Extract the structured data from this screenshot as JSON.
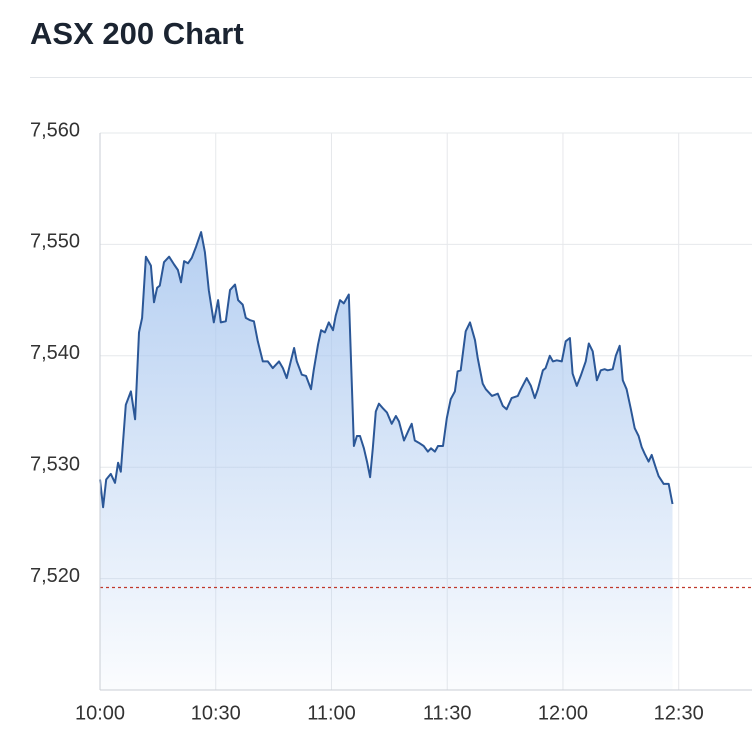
{
  "chart_data": {
    "type": "area",
    "title": "ASX 200 Chart",
    "x": [
      600.0,
      600.8,
      601.6,
      602.8,
      603.9,
      604.7,
      605.4,
      606.7,
      608.0,
      609.1,
      610.1,
      610.9,
      611.9,
      613.2,
      614.0,
      614.8,
      615.5,
      616.6,
      617.9,
      619.2,
      620.2,
      621.0,
      621.8,
      622.8,
      623.8,
      624.9,
      626.2,
      627.2,
      628.2,
      629.5,
      630.6,
      631.3,
      632.6,
      633.7,
      635.0,
      635.8,
      637.0,
      637.8,
      638.9,
      639.9,
      640.9,
      642.2,
      643.5,
      644.8,
      646.4,
      647.4,
      648.4,
      649.5,
      650.3,
      651.0,
      652.3,
      653.4,
      654.7,
      655.4,
      656.5,
      657.3,
      658.3,
      659.3,
      660.4,
      661.1,
      662.2,
      663.2,
      664.5,
      665.8,
      666.6,
      667.4,
      668.4,
      669.2,
      670.0,
      670.7,
      671.5,
      672.3,
      673.3,
      674.4,
      675.6,
      676.7,
      677.5,
      678.8,
      680.1,
      680.8,
      681.6,
      682.6,
      683.9,
      685.0,
      685.8,
      686.8,
      687.6,
      688.9,
      689.9,
      690.9,
      692.0,
      692.7,
      693.5,
      694.8,
      695.9,
      697.2,
      697.9,
      699.2,
      700.0,
      701.6,
      703.1,
      704.4,
      705.4,
      706.7,
      708.3,
      709.1,
      710.6,
      711.7,
      712.7,
      713.5,
      714.8,
      715.5,
      716.6,
      717.4,
      718.4,
      719.7,
      720.7,
      721.8,
      722.5,
      723.6,
      724.6,
      725.9,
      726.7,
      727.7,
      728.8,
      729.8,
      730.8,
      731.6,
      732.9,
      733.7,
      734.7,
      735.5,
      736.5,
      737.6,
      738.6,
      739.6,
      740.4,
      741.2,
      742.2,
      743.0,
      744.0,
      744.8,
      746.1,
      747.4,
      748.4
    ],
    "values": [
      7528.9,
      7526.4,
      7528.9,
      7529.4,
      7528.6,
      7530.4,
      7529.6,
      7535.6,
      7536.8,
      7534.3,
      7542.1,
      7543.4,
      7548.9,
      7548.1,
      7544.8,
      7546.1,
      7546.3,
      7548.4,
      7548.9,
      7548.2,
      7547.7,
      7546.6,
      7548.5,
      7548.3,
      7548.8,
      7549.8,
      7551.1,
      7549.3,
      7545.9,
      7543.0,
      7545.0,
      7543.0,
      7543.1,
      7545.9,
      7546.4,
      7545.0,
      7544.6,
      7543.4,
      7543.2,
      7543.1,
      7541.3,
      7539.5,
      7539.5,
      7538.9,
      7539.5,
      7538.9,
      7538.0,
      7539.6,
      7540.7,
      7539.5,
      7538.3,
      7538.2,
      7537.0,
      7538.7,
      7541.0,
      7542.3,
      7542.1,
      7543.0,
      7542.3,
      7543.6,
      7545.0,
      7544.7,
      7545.5,
      7531.9,
      7532.8,
      7532.8,
      7531.7,
      7530.5,
      7529.1,
      7531.7,
      7535.0,
      7535.7,
      7535.3,
      7534.9,
      7533.9,
      7534.6,
      7534.1,
      7532.4,
      7533.4,
      7533.9,
      7532.4,
      7532.2,
      7531.9,
      7531.4,
      7531.7,
      7531.4,
      7531.9,
      7531.9,
      7534.4,
      7536.1,
      7536.8,
      7538.6,
      7538.7,
      7542.2,
      7543.0,
      7541.4,
      7539.8,
      7537.5,
      7537.0,
      7536.4,
      7536.6,
      7535.5,
      7535.2,
      7536.2,
      7536.4,
      7537.0,
      7538.0,
      7537.3,
      7536.2,
      7537.0,
      7538.7,
      7538.9,
      7540.0,
      7539.5,
      7539.6,
      7539.5,
      7541.3,
      7541.6,
      7538.4,
      7537.3,
      7538.2,
      7539.5,
      7541.1,
      7540.4,
      7537.8,
      7538.7,
      7538.8,
      7538.7,
      7538.8,
      7540.0,
      7540.9,
      7537.8,
      7537.0,
      7535.2,
      7533.5,
      7532.8,
      7531.8,
      7531.2,
      7530.5,
      7531.1,
      7530.0,
      7529.2,
      7528.5,
      7528.5,
      7526.7
    ],
    "color": "#2b5797",
    "fill_color": "#a9c7ef",
    "xlim": [
      600,
      769
    ],
    "xticks": [
      {
        "value": 600,
        "label": "10:00"
      },
      {
        "value": 630,
        "label": "10:30"
      },
      {
        "value": 660,
        "label": "11:00"
      },
      {
        "value": 690,
        "label": "11:30"
      },
      {
        "value": 720,
        "label": "12:00"
      },
      {
        "value": 750,
        "label": "12:30"
      }
    ],
    "ylim": [
      7510,
      7560
    ],
    "yticks": [
      {
        "value": 7520,
        "label": "7,520"
      },
      {
        "value": 7530,
        "label": "7,530"
      },
      {
        "value": 7540,
        "label": "7,540"
      },
      {
        "value": 7550,
        "label": "7,550"
      },
      {
        "value": 7560,
        "label": "7,560"
      }
    ],
    "grid": true,
    "reference_line": 7519.2,
    "reference_color": "#c0392b"
  }
}
